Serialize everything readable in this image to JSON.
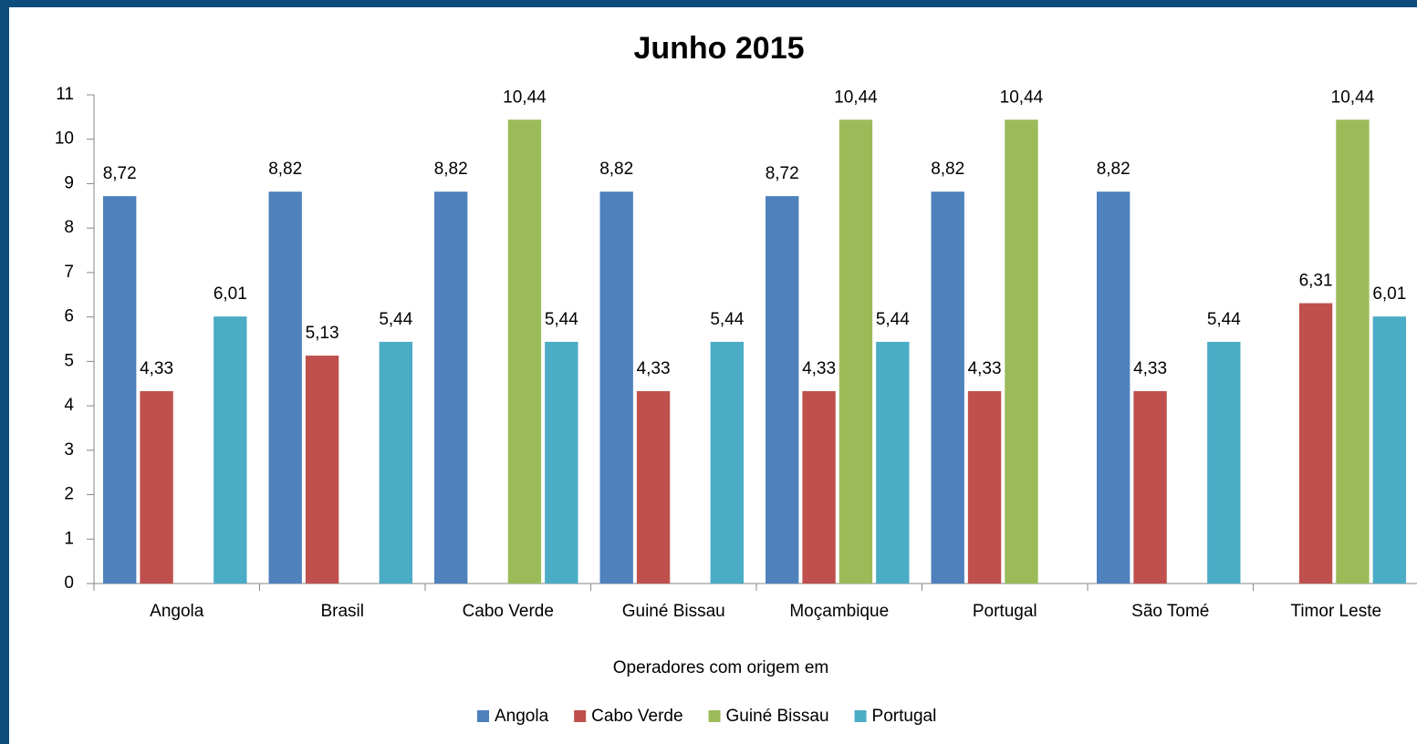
{
  "chart_data": {
    "type": "bar",
    "title": "Junho 2015",
    "x_label": "Operadores com origem em",
    "categories": [
      "Angola",
      "Brasil",
      "Cabo Verde",
      "Guiné Bissau",
      "Moçambique",
      "Portugal",
      "São Tomé",
      "Timor Leste"
    ],
    "series": [
      {
        "name": "Angola",
        "color": "#4f81bd",
        "values": [
          8.72,
          8.82,
          8.82,
          8.82,
          8.72,
          8.82,
          8.82,
          null
        ],
        "value_labels": [
          "8,72",
          "8,82",
          "8,82",
          "8,82",
          "8,72",
          "8,82",
          "8,82",
          null
        ]
      },
      {
        "name": "Cabo Verde",
        "color": "#c0504d",
        "values": [
          4.33,
          5.13,
          null,
          4.33,
          4.33,
          4.33,
          4.33,
          6.31
        ],
        "value_labels": [
          "4,33",
          "5,13",
          null,
          "4,33",
          "4,33",
          "4,33",
          "4,33",
          "6,31"
        ]
      },
      {
        "name": "Guiné Bissau",
        "color": "#9bbb59",
        "values": [
          null,
          null,
          10.44,
          null,
          10.44,
          10.44,
          null,
          10.44
        ],
        "value_labels": [
          null,
          null,
          "10,44",
          null,
          "10,44",
          "10,44",
          null,
          "10,44"
        ]
      },
      {
        "name": "Portugal",
        "color": "#4bacc6",
        "values": [
          6.01,
          5.44,
          5.44,
          5.44,
          5.44,
          null,
          5.44,
          6.01
        ],
        "value_labels": [
          "6,01",
          "5,44",
          "5,44",
          "5,44",
          "5,44",
          null,
          "5,44",
          "6,01"
        ]
      }
    ],
    "ylim": [
      0,
      11
    ],
    "yticks": [
      0,
      1,
      2,
      3,
      4,
      5,
      6,
      7,
      8,
      9,
      10,
      11
    ],
    "grid": false,
    "legend": "bottom"
  }
}
